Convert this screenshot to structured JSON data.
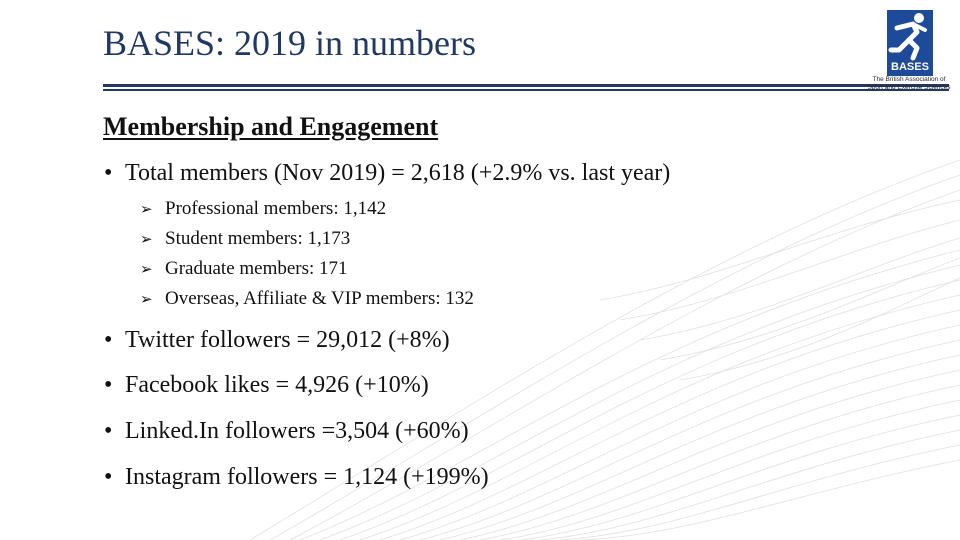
{
  "slide": {
    "title": "BASES: 2019 in numbers"
  },
  "logo": {
    "name": "BASES",
    "org_line1": "The British Association of",
    "org_line2": "Sport and Exercise Sciences"
  },
  "section": {
    "heading": "Membership and Engagement",
    "total": "Total members (Nov 2019) = 2,618 (+2.9% vs. last year)",
    "breakdown": [
      "Professional members: 1,142",
      "Student members: 1,173",
      "Graduate members: 171",
      "Overseas, Affiliate & VIP members: 132"
    ],
    "social": [
      "Twitter followers = 29,012 (+8%)",
      "Facebook likes = 4,926 (+10%)",
      "Linked.In followers =3,504 (+60%)",
      "Instagram followers = 1,124 (+199%)"
    ]
  },
  "symbols": {
    "bullet": "•",
    "arrow": "➢"
  },
  "colors": {
    "title": "#1f3864",
    "logo_blue": "#1e4a9a",
    "wave_lines": "#d9d9d9"
  }
}
